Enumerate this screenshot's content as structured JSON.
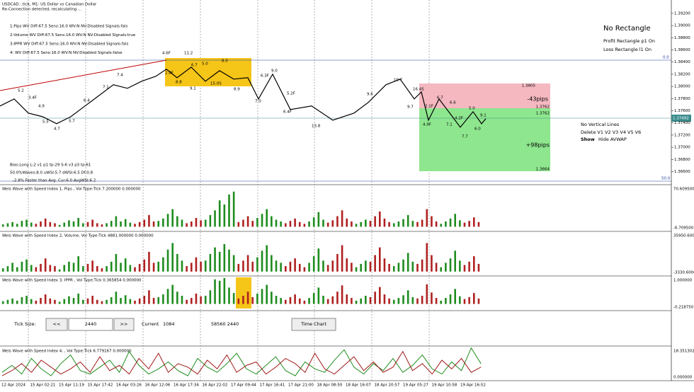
{
  "header": {
    "symbol": "USDCAD...tick, M1:  US Dollar vs Canadian Dollar",
    "status": "Re-Connection detected, recalculating ..."
  },
  "settings": [
    "1:Pips   WV Diff:67.5 Sens:16.0 WV:N NV:Disabled Signals:fals",
    "2:Volume WV Diff:67.5 Sens:16.0 WV:N NV:Disabled Signals:true",
    "3:IPPR   WV Diff:67.5 Sens:16.0 WV:N NV:Disabled Signals:fals",
    "4: WV Diff:67.5 Sens:16.0 WV:N NV:Disabled Signals:false"
  ],
  "stats": [
    "Bias:Long L:2 v1 p1 tp:29 S:6 v3 p3 tp:61",
    "50.0%Waves:8.0 uWSI:5.7 dWSI:6.5 Df:0.8",
    "-2.8% Faster than Avg. Cur:6.0 AvgWSI:6.2"
  ],
  "rect_panel": {
    "title": "No Rectangle",
    "profit": "Profit Rectangle p1 On",
    "loss": "Loss Rectangle l1 On"
  },
  "vline_panel": {
    "title": "No Vertical Lines",
    "delete": "Delete  V1  V2  V3  V4  V5  V6",
    "show": "Show",
    "hide": "Hide AVWAP"
  },
  "rect_labels": {
    "top": "1.3805",
    "loss_pips": "-43pips",
    "mid1": "1.3762",
    "mid2": "1.3762",
    "profit_pips": "+98pips",
    "bottom": "1.3664"
  },
  "levels": {
    "upper": "0.0",
    "lower": "50.0",
    "current": "1.37492"
  },
  "wave_labels": [
    "4.6F",
    "11.2",
    "2.8F",
    "6.7",
    "5.0",
    "8.0",
    "8.8",
    "9.1",
    "15.0S",
    "8.9",
    "7.4",
    "7.1",
    "6.3F",
    "9.0",
    "7.0",
    "5.2F",
    "6.4F",
    "13.8",
    "9.6",
    "10.7",
    "16.4S",
    "9.7",
    "2.1F",
    "6.7",
    "4.9F",
    "7.1",
    "6.6",
    "4.2F",
    "5.0",
    "9.1",
    "6.0",
    "7.7",
    "5.2",
    "3.4F",
    "4.9",
    "6.4",
    "5.7",
    "5.5",
    "4.7"
  ],
  "price": {
    "x": [
      0,
      20,
      40,
      60,
      80,
      100,
      120,
      140,
      160,
      180,
      200,
      220,
      235,
      250,
      270,
      290,
      310,
      330,
      350,
      365,
      385,
      410,
      440,
      470,
      500,
      520,
      545,
      565,
      585,
      595,
      605,
      620,
      635,
      650,
      668,
      680,
      686
    ],
    "values": [
      1.37678,
      1.37794,
      1.37562,
      1.37503,
      1.37387,
      1.37503,
      1.37678,
      1.37852,
      1.38027,
      1.37969,
      1.38085,
      1.38166,
      1.38283,
      1.38143,
      1.38317,
      1.38085,
      1.38259,
      1.3812,
      1.38143,
      1.37794,
      1.38201,
      1.3762,
      1.37678,
      1.37445,
      1.37562,
      1.37736,
      1.38027,
      1.3812,
      1.37794,
      1.3791,
      1.37445,
      1.37794,
      1.37562,
      1.37329,
      1.37585,
      1.37387,
      1.37469
    ],
    "xlim": [
      0,
      700
    ],
    "ylim": [
      1.3642,
      1.3942
    ],
    "yticks": [
      {
        "value": 1.392,
        "label": "1.39200"
      },
      {
        "value": 1.39,
        "label": "1.39000"
      },
      {
        "value": 1.388,
        "label": "1.38800"
      },
      {
        "value": 1.386,
        "label": "1.38600"
      },
      {
        "value": 1.384,
        "label": "1.38400"
      },
      {
        "value": 1.382,
        "label": "1.38200"
      },
      {
        "value": 1.38,
        "label": "1.38000"
      },
      {
        "value": 1.378,
        "label": "1.37800"
      },
      {
        "value": 1.376,
        "label": "1.37600"
      },
      {
        "value": 1.374,
        "label": "1.37400"
      },
      {
        "value": 1.372,
        "label": "1.37200"
      },
      {
        "value": 1.37,
        "label": "1.37000"
      },
      {
        "value": 1.368,
        "label": "1.36800"
      },
      {
        "value": 1.366,
        "label": "1.36600"
      }
    ]
  },
  "panels": [
    {
      "title": "Weis Wave with Speed Index 1, Pips    , Vol Type:Tick 7.200000 0.000000",
      "max": "70.609500",
      "min": "-6.709500",
      "ylim": [
        -6.7095,
        70.6095
      ],
      "colors": [
        "#1e8c1e",
        "#b02020"
      ],
      "waves": [
        [
          4,
          6,
          8,
          5,
          10,
          12,
          7
        ],
        [
          5,
          9,
          14,
          8,
          6
        ],
        [
          3,
          7,
          11,
          9,
          15,
          6
        ],
        [
          8,
          12,
          6,
          4
        ],
        [
          6,
          10,
          18,
          9,
          13,
          7
        ],
        [
          5,
          8,
          12,
          20,
          9
        ],
        [
          10,
          14,
          22,
          30,
          18,
          12
        ],
        [
          6,
          9,
          15,
          11
        ],
        [
          12,
          20,
          28,
          45,
          38,
          55,
          60
        ],
        [
          8,
          12,
          18,
          10
        ],
        [
          15,
          22,
          30,
          18,
          12,
          9
        ],
        [
          6,
          10,
          14,
          8,
          5
        ],
        [
          9,
          16,
          25,
          12
        ],
        [
          7,
          11,
          18,
          28,
          14,
          9
        ],
        [
          5,
          8,
          12
        ],
        [
          10,
          18,
          26,
          14,
          8
        ],
        [
          6,
          9,
          13,
          20,
          10
        ],
        [
          8,
          12,
          30,
          18,
          9
        ],
        [
          5,
          9,
          14,
          22,
          11
        ],
        [
          7,
          10,
          16,
          8
        ]
      ]
    },
    {
      "title": "Weis Wave with Speed Index 2, Volume, Vol Type:Tick 4881.000000 0.000000",
      "max": "35950.6000",
      "min": "-3330.6000",
      "ylim": [
        -3330.6,
        35950.6
      ],
      "colors": [
        "#1e8c1e",
        "#b02020"
      ],
      "waves": [
        [
          3000,
          5000,
          8000,
          4000,
          9000,
          11000,
          6000
        ],
        [
          4000,
          7000,
          12000,
          6000,
          5000
        ],
        [
          2000,
          6000,
          9000,
          8000,
          14000,
          5000
        ],
        [
          7000,
          10000,
          5000,
          3000
        ],
        [
          5000,
          9000,
          16000,
          8000,
          12000,
          6000
        ],
        [
          4000,
          7000,
          11000,
          18000,
          8000
        ],
        [
          9000,
          13000,
          20000,
          26000,
          16000,
          10000
        ],
        [
          5000,
          8000,
          13000,
          9000
        ],
        [
          10000,
          16000,
          22000,
          18000,
          25000,
          20000,
          15000
        ],
        [
          7000,
          10000,
          15000,
          9000
        ],
        [
          13000,
          19000,
          24000,
          15000,
          10000,
          8000
        ],
        [
          5000,
          9000,
          12000,
          7000,
          4000
        ],
        [
          8000,
          14000,
          21000,
          10000
        ],
        [
          6000,
          10000,
          16000,
          24000,
          12000,
          8000
        ],
        [
          4000,
          7000,
          10000
        ],
        [
          9000,
          15000,
          22000,
          12000,
          7000
        ],
        [
          5000,
          8000,
          11000,
          17000,
          9000
        ],
        [
          7000,
          11000,
          26000,
          15000,
          8000
        ],
        [
          4000,
          8000,
          12000,
          19000,
          10000
        ],
        [
          6000,
          9000,
          14000,
          7000
        ]
      ]
    },
    {
      "title": "Weis Wave with Speed Index 3, IPPR    , Vol Type:Tick 0.365854 0.000000",
      "max": "1.000000",
      "min": "-0.218750",
      "ylim": [
        -0.21875,
        1.0
      ],
      "colors": [
        "#1e8c1e",
        "#b02020"
      ],
      "waves": [
        [
          0.1,
          0.15,
          0.2,
          0.12,
          0.25,
          0.3,
          0.18
        ],
        [
          0.12,
          0.22,
          0.35,
          0.2,
          0.15
        ],
        [
          0.08,
          0.18,
          0.28,
          0.22,
          0.38,
          0.15
        ],
        [
          0.2,
          0.3,
          0.15,
          0.1
        ],
        [
          0.15,
          0.25,
          0.45,
          0.22,
          0.32,
          0.18
        ],
        [
          0.12,
          0.2,
          0.3,
          0.5,
          0.22
        ],
        [
          0.25,
          0.35,
          0.55,
          0.7,
          0.45,
          0.3
        ],
        [
          0.15,
          0.22,
          0.38,
          0.28
        ],
        [
          0.3,
          0.5,
          0.9,
          0.85,
          0.95,
          0.6,
          0.4
        ],
        [
          0.2,
          0.3,
          0.45,
          0.25
        ],
        [
          0.38,
          0.55,
          0.7,
          0.45,
          0.3,
          0.22
        ],
        [
          0.15,
          0.25,
          0.35,
          0.2,
          0.12
        ],
        [
          0.22,
          0.4,
          0.6,
          0.3
        ],
        [
          0.18,
          0.28,
          0.45,
          0.68,
          0.35,
          0.22
        ],
        [
          0.12,
          0.2,
          0.3
        ],
        [
          0.25,
          0.45,
          0.62,
          0.35,
          0.2
        ],
        [
          0.15,
          0.22,
          0.32,
          0.5,
          0.25
        ],
        [
          0.2,
          0.3,
          0.72,
          0.42,
          0.22
        ],
        [
          0.12,
          0.22,
          0.35,
          0.55,
          0.28
        ],
        [
          0.18,
          0.25,
          0.4,
          0.2
        ]
      ]
    }
  ],
  "controls": {
    "tick_size": "Tick Size:",
    "prev": "<<",
    "input": "2440",
    "next": ">>",
    "current_label": "Current",
    "current": "1084",
    "info": "58560 2440",
    "time_chart": "Time Chart"
  },
  "line_panel": {
    "title": "Weis Wave with Speed Index 4, , Vol Type:Tick 6.779167 0.000000",
    "max": "18.351302",
    "min": "0.000000",
    "ylim": [
      0,
      18.351302
    ],
    "series": [
      {
        "color": "#1e8c1e",
        "values": [
          4,
          8,
          3,
          12,
          6,
          2,
          9,
          14,
          5,
          3,
          7,
          11,
          4,
          16,
          8,
          3,
          6,
          10,
          5,
          2,
          12,
          7,
          4,
          9,
          15,
          6,
          3,
          8,
          13,
          5,
          2,
          10,
          6,
          4,
          11,
          17,
          7,
          3,
          9,
          5,
          12,
          4,
          8,
          14,
          6,
          3,
          10,
          5,
          18,
          9
        ]
      },
      {
        "color": "#a01818",
        "values": [
          2,
          5,
          9,
          4,
          11,
          7,
          3,
          6,
          10,
          4,
          13,
          5,
          8,
          3,
          12,
          6,
          15,
          4,
          9,
          7,
          3,
          11,
          6,
          14,
          4,
          8,
          10,
          3,
          7,
          12,
          9,
          4,
          15,
          6,
          3,
          8,
          13,
          5,
          10,
          4,
          7,
          16,
          5,
          9,
          3,
          11,
          6,
          12,
          4,
          7
        ]
      }
    ]
  },
  "time_axis": [
    "12 Apr 2024",
    "15 Apr 02:21",
    "15 Apr 11:19",
    "15 Apr 17:42",
    "16 Apr 03:26",
    "16 Apr 12:06",
    "16 Apr 17:34",
    "16 Apr 22:02",
    "17 Apr 09:44",
    "17 Apr 16:41",
    "17 Apr 21:00",
    "18 Apr 08:50",
    "18 Apr 16:07",
    "18 Apr 20:57",
    "19 Apr 05:27",
    "19 Apr 10:58",
    "19 Apr 16:52"
  ]
}
